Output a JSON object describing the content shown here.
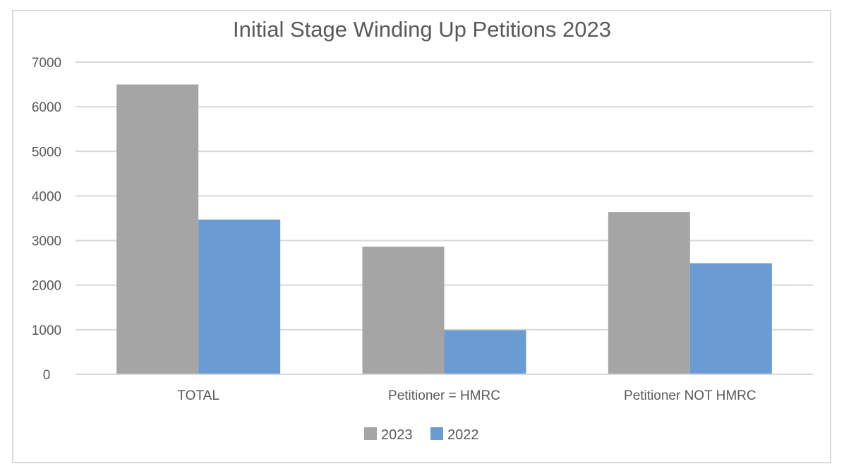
{
  "chart_data": {
    "type": "bar",
    "title": "Initial Stage Winding Up Petitions 2023",
    "xlabel": "",
    "ylabel": "",
    "categories": [
      "TOTAL",
      "Petitioner = HMRC",
      "Petitioner NOT HMRC"
    ],
    "series": [
      {
        "name": "2023",
        "values": [
          6500,
          2860,
          3640
        ],
        "color": "#a5a5a5"
      },
      {
        "name": "2022",
        "values": [
          3470,
          990,
          2490
        ],
        "color": "#6a9bd2"
      }
    ],
    "ylim": [
      0,
      7000
    ],
    "yticks": [
      0,
      1000,
      2000,
      3000,
      4000,
      5000,
      6000,
      7000
    ],
    "grid": true,
    "legend_position": "bottom"
  }
}
